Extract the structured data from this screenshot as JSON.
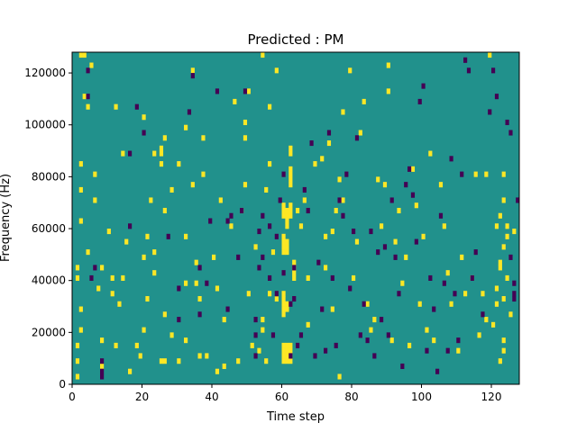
{
  "chart_data": {
    "type": "heatmap",
    "title": "Predicted : PM",
    "xlabel": "Time step",
    "ylabel": "Frequency (Hz)",
    "xlim": [
      0,
      128
    ],
    "ylim": [
      0,
      128000
    ],
    "xticks": [
      0,
      20,
      40,
      60,
      80,
      100,
      120
    ],
    "yticks": [
      0,
      20000,
      40000,
      60000,
      80000,
      100000,
      120000
    ],
    "values": {
      "background": 0,
      "high": 1,
      "low": -1
    },
    "colors": {
      "background": "#21918c",
      "high": "#fde725",
      "low": "#440154"
    },
    "time_bins": 128,
    "freq_bins": 64,
    "freq_bin_hz": 2000,
    "high_cells": [
      [
        2,
        126000
      ],
      [
        3,
        126000
      ],
      [
        2,
        28000
      ],
      [
        2,
        20000
      ],
      [
        1,
        14000
      ],
      [
        1,
        8000
      ],
      [
        1,
        2000
      ],
      [
        5,
        122000
      ],
      [
        4,
        106000
      ],
      [
        3,
        110000
      ],
      [
        2,
        84000
      ],
      [
        2,
        74000
      ],
      [
        2,
        62000
      ],
      [
        4,
        50000
      ],
      [
        1,
        44000
      ],
      [
        1,
        40000
      ],
      [
        6,
        80000
      ],
      [
        6,
        70000
      ],
      [
        7,
        36000
      ],
      [
        8,
        44000
      ],
      [
        8,
        16000
      ],
      [
        8,
        6000
      ],
      [
        10,
        58000
      ],
      [
        11,
        40000
      ],
      [
        11,
        34000
      ],
      [
        13,
        30000
      ],
      [
        12,
        14000
      ],
      [
        12,
        106000
      ],
      [
        14,
        88000
      ],
      [
        14,
        40000
      ],
      [
        16,
        4000
      ],
      [
        15,
        54000
      ],
      [
        18,
        14000
      ],
      [
        19,
        10000
      ],
      [
        20,
        20000
      ],
      [
        21,
        32000
      ],
      [
        20,
        48000
      ],
      [
        20,
        102000
      ],
      [
        21,
        56000
      ],
      [
        22,
        70000
      ],
      [
        23,
        88000
      ],
      [
        25,
        8000
      ],
      [
        26,
        26000
      ],
      [
        26,
        8000
      ],
      [
        23,
        42000
      ],
      [
        23,
        50000
      ],
      [
        25,
        88000
      ],
      [
        25,
        90000
      ],
      [
        25,
        84000
      ],
      [
        26,
        66000
      ],
      [
        26,
        94000
      ],
      [
        28,
        74000
      ],
      [
        28,
        18000
      ],
      [
        30,
        8000
      ],
      [
        30,
        84000
      ],
      [
        32,
        98000
      ],
      [
        32,
        56000
      ],
      [
        32,
        38000
      ],
      [
        32,
        16000
      ],
      [
        34,
        120000
      ],
      [
        34,
        76000
      ],
      [
        35,
        46000
      ],
      [
        35,
        38000
      ],
      [
        36,
        32000
      ],
      [
        36,
        10000
      ],
      [
        37,
        94000
      ],
      [
        38,
        10000
      ],
      [
        37,
        80000
      ],
      [
        40,
        48000
      ],
      [
        41,
        36000
      ],
      [
        41,
        4000
      ],
      [
        42,
        70000
      ],
      [
        43,
        24000
      ],
      [
        43,
        6000
      ],
      [
        45,
        60000
      ],
      [
        46,
        108000
      ],
      [
        47,
        8000
      ],
      [
        48,
        66000
      ],
      [
        49,
        100000
      ],
      [
        50,
        112000
      ],
      [
        49,
        76000
      ],
      [
        49,
        94000
      ],
      [
        51,
        14000
      ],
      [
        50,
        34000
      ],
      [
        52,
        52000
      ],
      [
        53,
        12000
      ],
      [
        54,
        126000
      ],
      [
        54,
        24000
      ],
      [
        54,
        20000
      ],
      [
        55,
        74000
      ],
      [
        55,
        8000
      ],
      [
        56,
        34000
      ],
      [
        57,
        50000
      ],
      [
        56,
        106000
      ],
      [
        58,
        120000
      ],
      [
        56,
        84000
      ],
      [
        58,
        32000
      ]
    ],
    "low_cells": [
      [
        8,
        4000
      ],
      [
        8,
        2000
      ],
      [
        8,
        8000
      ],
      [
        4,
        120000
      ],
      [
        4,
        110000
      ],
      [
        6,
        44000
      ],
      [
        5,
        40000
      ],
      [
        16,
        60000
      ],
      [
        16,
        88000
      ],
      [
        18,
        106000
      ],
      [
        20,
        96000
      ],
      [
        27,
        56000
      ],
      [
        30,
        24000
      ],
      [
        30,
        36000
      ],
      [
        33,
        104000
      ],
      [
        34,
        118000
      ],
      [
        36,
        44000
      ],
      [
        36,
        26000
      ],
      [
        38,
        38000
      ],
      [
        39,
        62000
      ],
      [
        41,
        112000
      ],
      [
        44,
        62000
      ],
      [
        44,
        28000
      ],
      [
        45,
        64000
      ],
      [
        47,
        48000
      ],
      [
        48,
        66000
      ],
      [
        49,
        112000
      ],
      [
        52,
        24000
      ],
      [
        52,
        18000
      ],
      [
        52,
        10000
      ],
      [
        53,
        58000
      ],
      [
        53,
        44000
      ],
      [
        54,
        48000
      ],
      [
        54,
        64000
      ],
      [
        56,
        40000
      ],
      [
        56,
        60000
      ],
      [
        57,
        18000
      ],
      [
        58,
        56000
      ],
      [
        58,
        34000
      ],
      [
        59,
        70000
      ],
      [
        60,
        42000
      ],
      [
        60,
        80000
      ],
      [
        62,
        30000
      ],
      [
        62,
        10000
      ],
      [
        63,
        44000
      ],
      [
        63,
        32000
      ]
    ],
    "dense_high_cols": [
      [
        60,
        8000,
        16000
      ],
      [
        61,
        8000,
        16000
      ],
      [
        62,
        8000,
        16000
      ],
      [
        61,
        60000,
        68000
      ],
      [
        60,
        64000,
        70000
      ],
      [
        62,
        64000,
        70000
      ],
      [
        60,
        50000,
        58000
      ],
      [
        61,
        50000,
        56000
      ],
      [
        60,
        26000,
        36000
      ],
      [
        61,
        28000,
        32000
      ],
      [
        62,
        76000,
        84000
      ],
      [
        62,
        88000,
        92000
      ],
      [
        63,
        40000,
        48000
      ]
    ],
    "sparse_extra_high": [
      [
        64,
        66000
      ],
      [
        65,
        60000
      ],
      [
        66,
        70000
      ],
      [
        67,
        22000
      ],
      [
        67,
        40000
      ],
      [
        69,
        84000
      ],
      [
        71,
        86000
      ],
      [
        72,
        56000
      ],
      [
        72,
        44000
      ],
      [
        73,
        92000
      ],
      [
        74,
        58000
      ],
      [
        74,
        28000
      ],
      [
        75,
        66000
      ],
      [
        76,
        78000
      ],
      [
        76,
        2000
      ],
      [
        77,
        104000
      ],
      [
        77,
        70000
      ],
      [
        79,
        120000
      ],
      [
        80,
        40000
      ],
      [
        81,
        54000
      ],
      [
        82,
        96000
      ],
      [
        83,
        108000
      ],
      [
        84,
        30000
      ],
      [
        85,
        20000
      ],
      [
        86,
        24000
      ],
      [
        87,
        78000
      ],
      [
        88,
        60000
      ],
      [
        89,
        76000
      ],
      [
        90,
        122000
      ],
      [
        90,
        112000
      ],
      [
        91,
        16000
      ],
      [
        92,
        54000
      ],
      [
        93,
        66000
      ],
      [
        94,
        38000
      ],
      [
        95,
        48000
      ],
      [
        96,
        14000
      ],
      [
        97,
        82000
      ],
      [
        98,
        68000
      ],
      [
        99,
        30000
      ],
      [
        100,
        56000
      ],
      [
        101,
        20000
      ],
      [
        102,
        88000
      ],
      [
        103,
        16000
      ],
      [
        105,
        76000
      ],
      [
        106,
        60000
      ],
      [
        107,
        42000
      ],
      [
        108,
        30000
      ],
      [
        110,
        12000
      ],
      [
        111,
        48000
      ],
      [
        112,
        34000
      ],
      [
        114,
        40000
      ],
      [
        115,
        80000
      ],
      [
        116,
        18000
      ],
      [
        117,
        34000
      ],
      [
        119,
        126000
      ],
      [
        118,
        24000
      ],
      [
        118,
        80000
      ],
      [
        120,
        22000
      ],
      [
        121,
        36000
      ],
      [
        122,
        44000
      ],
      [
        123,
        32000
      ],
      [
        124,
        56000
      ],
      [
        121,
        60000
      ],
      [
        122,
        64000
      ],
      [
        123,
        70000
      ],
      [
        123,
        80000
      ],
      [
        124,
        40000
      ],
      [
        121,
        30000
      ],
      [
        122,
        46000
      ],
      [
        123,
        52000
      ],
      [
        124,
        60000
      ],
      [
        122,
        8000
      ],
      [
        123,
        12000
      ],
      [
        123,
        16000
      ],
      [
        125,
        26000
      ],
      [
        126,
        58000
      ]
    ],
    "sparse_extra_low": [
      [
        64,
        14000
      ],
      [
        65,
        18000
      ],
      [
        66,
        74000
      ],
      [
        67,
        66000
      ],
      [
        68,
        92000
      ],
      [
        69,
        10000
      ],
      [
        70,
        46000
      ],
      [
        71,
        28000
      ],
      [
        72,
        12000
      ],
      [
        73,
        96000
      ],
      [
        74,
        40000
      ],
      [
        75,
        14000
      ],
      [
        76,
        70000
      ],
      [
        77,
        64000
      ],
      [
        78,
        80000
      ],
      [
        79,
        36000
      ],
      [
        80,
        58000
      ],
      [
        81,
        94000
      ],
      [
        82,
        18000
      ],
      [
        83,
        30000
      ],
      [
        84,
        16000
      ],
      [
        85,
        58000
      ],
      [
        86,
        10000
      ],
      [
        87,
        50000
      ],
      [
        88,
        24000
      ],
      [
        89,
        52000
      ],
      [
        90,
        18000
      ],
      [
        91,
        70000
      ],
      [
        92,
        48000
      ],
      [
        93,
        34000
      ],
      [
        94,
        6000
      ],
      [
        95,
        76000
      ],
      [
        96,
        82000
      ],
      [
        97,
        72000
      ],
      [
        98,
        54000
      ],
      [
        99,
        108000
      ],
      [
        100,
        114000
      ],
      [
        101,
        12000
      ],
      [
        102,
        40000
      ],
      [
        103,
        28000
      ],
      [
        104,
        4000
      ],
      [
        105,
        64000
      ],
      [
        106,
        38000
      ],
      [
        107,
        12000
      ],
      [
        108,
        86000
      ],
      [
        109,
        34000
      ],
      [
        110,
        16000
      ],
      [
        111,
        80000
      ],
      [
        112,
        124000
      ],
      [
        113,
        120000
      ],
      [
        114,
        40000
      ],
      [
        115,
        50000
      ],
      [
        117,
        26000
      ],
      [
        119,
        104000
      ],
      [
        120,
        120000
      ],
      [
        121,
        110000
      ],
      [
        124,
        100000
      ],
      [
        125,
        96000
      ],
      [
        126,
        34000
      ],
      [
        127,
        70000
      ],
      [
        126,
        38000
      ],
      [
        126,
        32000
      ],
      [
        125,
        48000
      ]
    ]
  }
}
